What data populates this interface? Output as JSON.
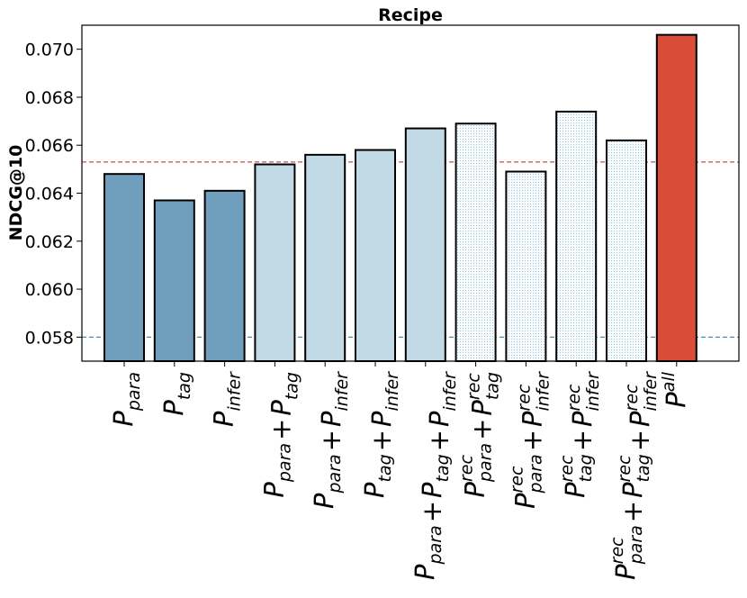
{
  "chart_data": {
    "type": "bar",
    "title": "Recipe",
    "xlabel": "",
    "ylabel": "NDCG@10",
    "ylim": [
      0.057,
      0.071
    ],
    "yticks": [
      "0.058",
      "0.060",
      "0.062",
      "0.064",
      "0.066",
      "0.068",
      "0.070"
    ],
    "categories": [
      "P_para",
      "P_tag",
      "P_infer",
      "P_para + P_tag",
      "P_para + P_infer",
      "P_tag + P_infer",
      "P_para + P_tag + P_infer",
      "P^rec_para + P^rec_tag",
      "P^rec_para + P^rec_infer",
      "P^rec_tag + P^rec_infer",
      "P^rec_para + P^rec_tag + P^rec_infer",
      "P^all"
    ],
    "category_terms": [
      [
        [
          "P",
          "",
          "para"
        ]
      ],
      [
        [
          "P",
          "",
          "tag"
        ]
      ],
      [
        [
          "P",
          "",
          "infer"
        ]
      ],
      [
        [
          "P",
          "",
          "para"
        ],
        [
          "P",
          "",
          "tag"
        ]
      ],
      [
        [
          "P",
          "",
          "para"
        ],
        [
          "P",
          "",
          "infer"
        ]
      ],
      [
        [
          "P",
          "",
          "tag"
        ],
        [
          "P",
          "",
          "infer"
        ]
      ],
      [
        [
          "P",
          "",
          "para"
        ],
        [
          "P",
          "",
          "tag"
        ],
        [
          "P",
          "",
          "infer"
        ]
      ],
      [
        [
          "P",
          "rec",
          "para"
        ],
        [
          "P",
          "rec",
          "tag"
        ]
      ],
      [
        [
          "P",
          "rec",
          "para"
        ],
        [
          "P",
          "rec",
          "infer"
        ]
      ],
      [
        [
          "P",
          "rec",
          "tag"
        ],
        [
          "P",
          "rec",
          "infer"
        ]
      ],
      [
        [
          "P",
          "rec",
          "para"
        ],
        [
          "P",
          "rec",
          "tag"
        ],
        [
          "P",
          "rec",
          "infer"
        ]
      ],
      [
        [
          "P",
          "all",
          ""
        ]
      ]
    ],
    "values": [
      0.0648,
      0.0637,
      0.0641,
      0.0652,
      0.0656,
      0.0658,
      0.0667,
      0.0669,
      0.0649,
      0.0674,
      0.0662,
      0.0706
    ],
    "bar_styles": [
      "single",
      "single",
      "single",
      "pair",
      "pair",
      "pair",
      "pair",
      "rec",
      "rec",
      "rec",
      "rec",
      "all"
    ],
    "colors": {
      "single": "#6f9fbc",
      "pair": "#c2dae6",
      "rec": "#f7fbfd",
      "rec_dots": "#9cc4d6",
      "all": "#d94c37",
      "edge": "#000000",
      "upper_line": "#c0504d",
      "lower_line": "#4a8fb8"
    },
    "reference_lines": [
      {
        "value": 0.0653,
        "style": "dashed",
        "color": "#c0504d"
      },
      {
        "value": 0.058,
        "style": "dashed",
        "color": "#4a8fb8"
      }
    ],
    "grid": false,
    "legend": "none"
  }
}
